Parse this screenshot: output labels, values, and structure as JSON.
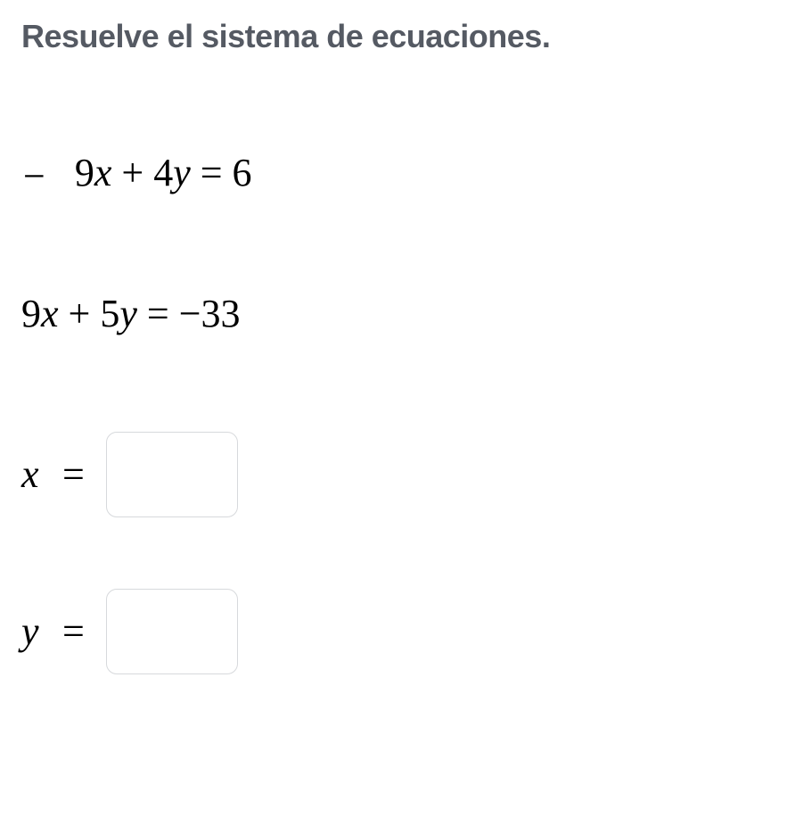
{
  "heading": "Resuelve el sistema de ecuaciones.",
  "heading_color": "#555a63",
  "heading_fontsize": 36,
  "heading_fontweight": 700,
  "equation1": {
    "prefix_minus": "−",
    "coeff_x": "9",
    "operator1": "+",
    "coeff_y": "4",
    "eq": "=",
    "rhs": "6"
  },
  "equation2": {
    "coeff_x": "9",
    "operator1": "+",
    "coeff_y": "5",
    "eq": "=",
    "rhs": "−33"
  },
  "math_fontsize": 44,
  "math_color": "#000000",
  "answer_x": {
    "var": "x",
    "eq": "=",
    "value": ""
  },
  "answer_y": {
    "var": "y",
    "eq": "=",
    "value": ""
  },
  "input_border_color": "#d7d9dc",
  "input_border_radius": 12,
  "input_width": 148,
  "input_height": 96,
  "background_color": "#ffffff"
}
